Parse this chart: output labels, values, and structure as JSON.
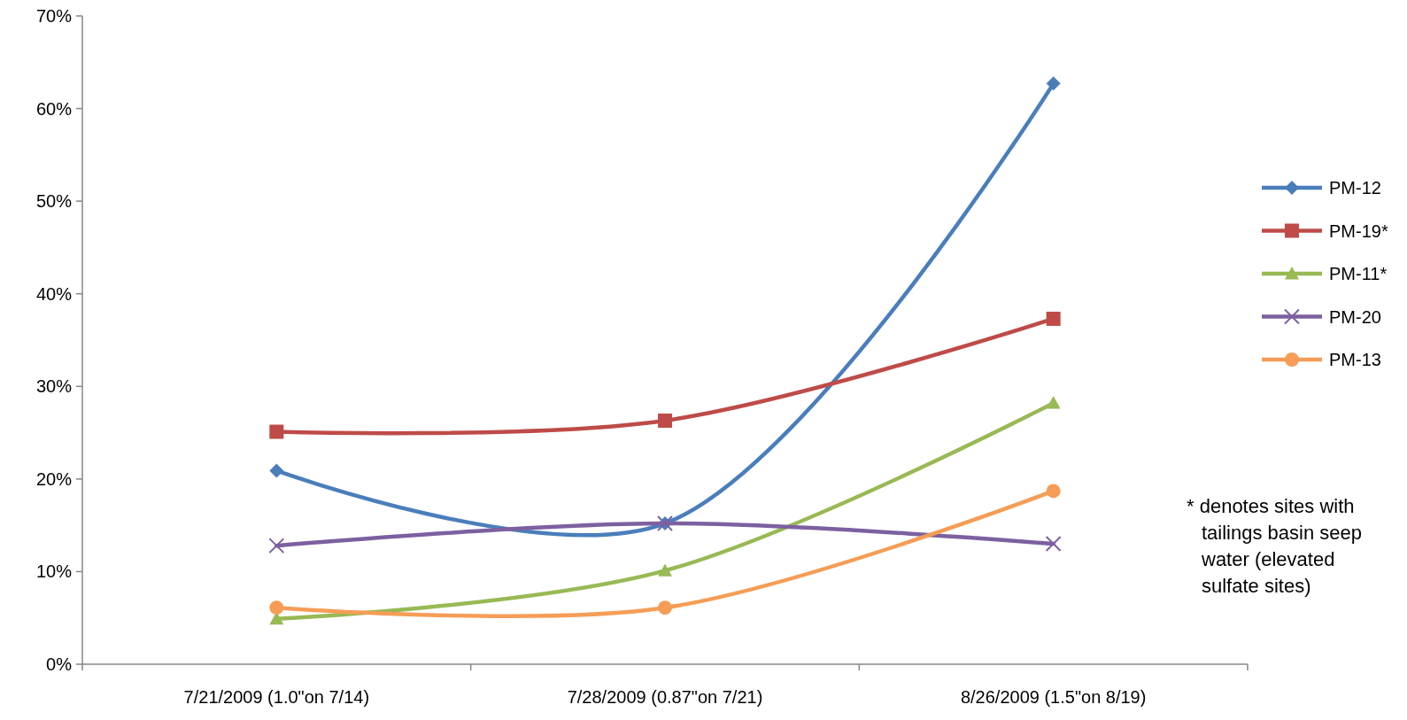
{
  "chart_data": {
    "type": "line",
    "categories": [
      "7/21/2009 (1.0\"on 7/14)",
      "7/28/2009 (0.87\"on 7/21)",
      "8/26/2009 (1.5\"on 8/19)"
    ],
    "series": [
      {
        "name": "PM-12",
        "color": "#4a7ebb",
        "marker": "diamond",
        "values": [
          20.9,
          15.2,
          62.7
        ]
      },
      {
        "name": "PM-19*",
        "color": "#be4b48",
        "marker": "square",
        "values": [
          25.1,
          26.3,
          37.3
        ]
      },
      {
        "name": "PM-11*",
        "color": "#98b954",
        "marker": "triangle",
        "values": [
          4.9,
          10.1,
          28.2
        ]
      },
      {
        "name": "PM-20",
        "color": "#7d60a0",
        "marker": "cross",
        "values": [
          12.8,
          15.2,
          13.0
        ]
      },
      {
        "name": "PM-13",
        "color": "#f59d56",
        "marker": "circle",
        "values": [
          6.1,
          6.1,
          18.7
        ]
      }
    ],
    "ylim": [
      0,
      70
    ],
    "yticks": [
      {
        "value": 0,
        "label": "0%"
      },
      {
        "value": 10,
        "label": "10%"
      },
      {
        "value": 20,
        "label": "20%"
      },
      {
        "value": 30,
        "label": "30%"
      },
      {
        "value": 40,
        "label": "40%"
      },
      {
        "value": 50,
        "label": "50%"
      },
      {
        "value": 60,
        "label": "60%"
      },
      {
        "value": 70,
        "label": "70%"
      }
    ],
    "legend": "right",
    "grid": false,
    "line_style": "solid",
    "annotations": [
      "* denotes sites with tailings basin seep water (elevated sulfate sites)"
    ]
  }
}
